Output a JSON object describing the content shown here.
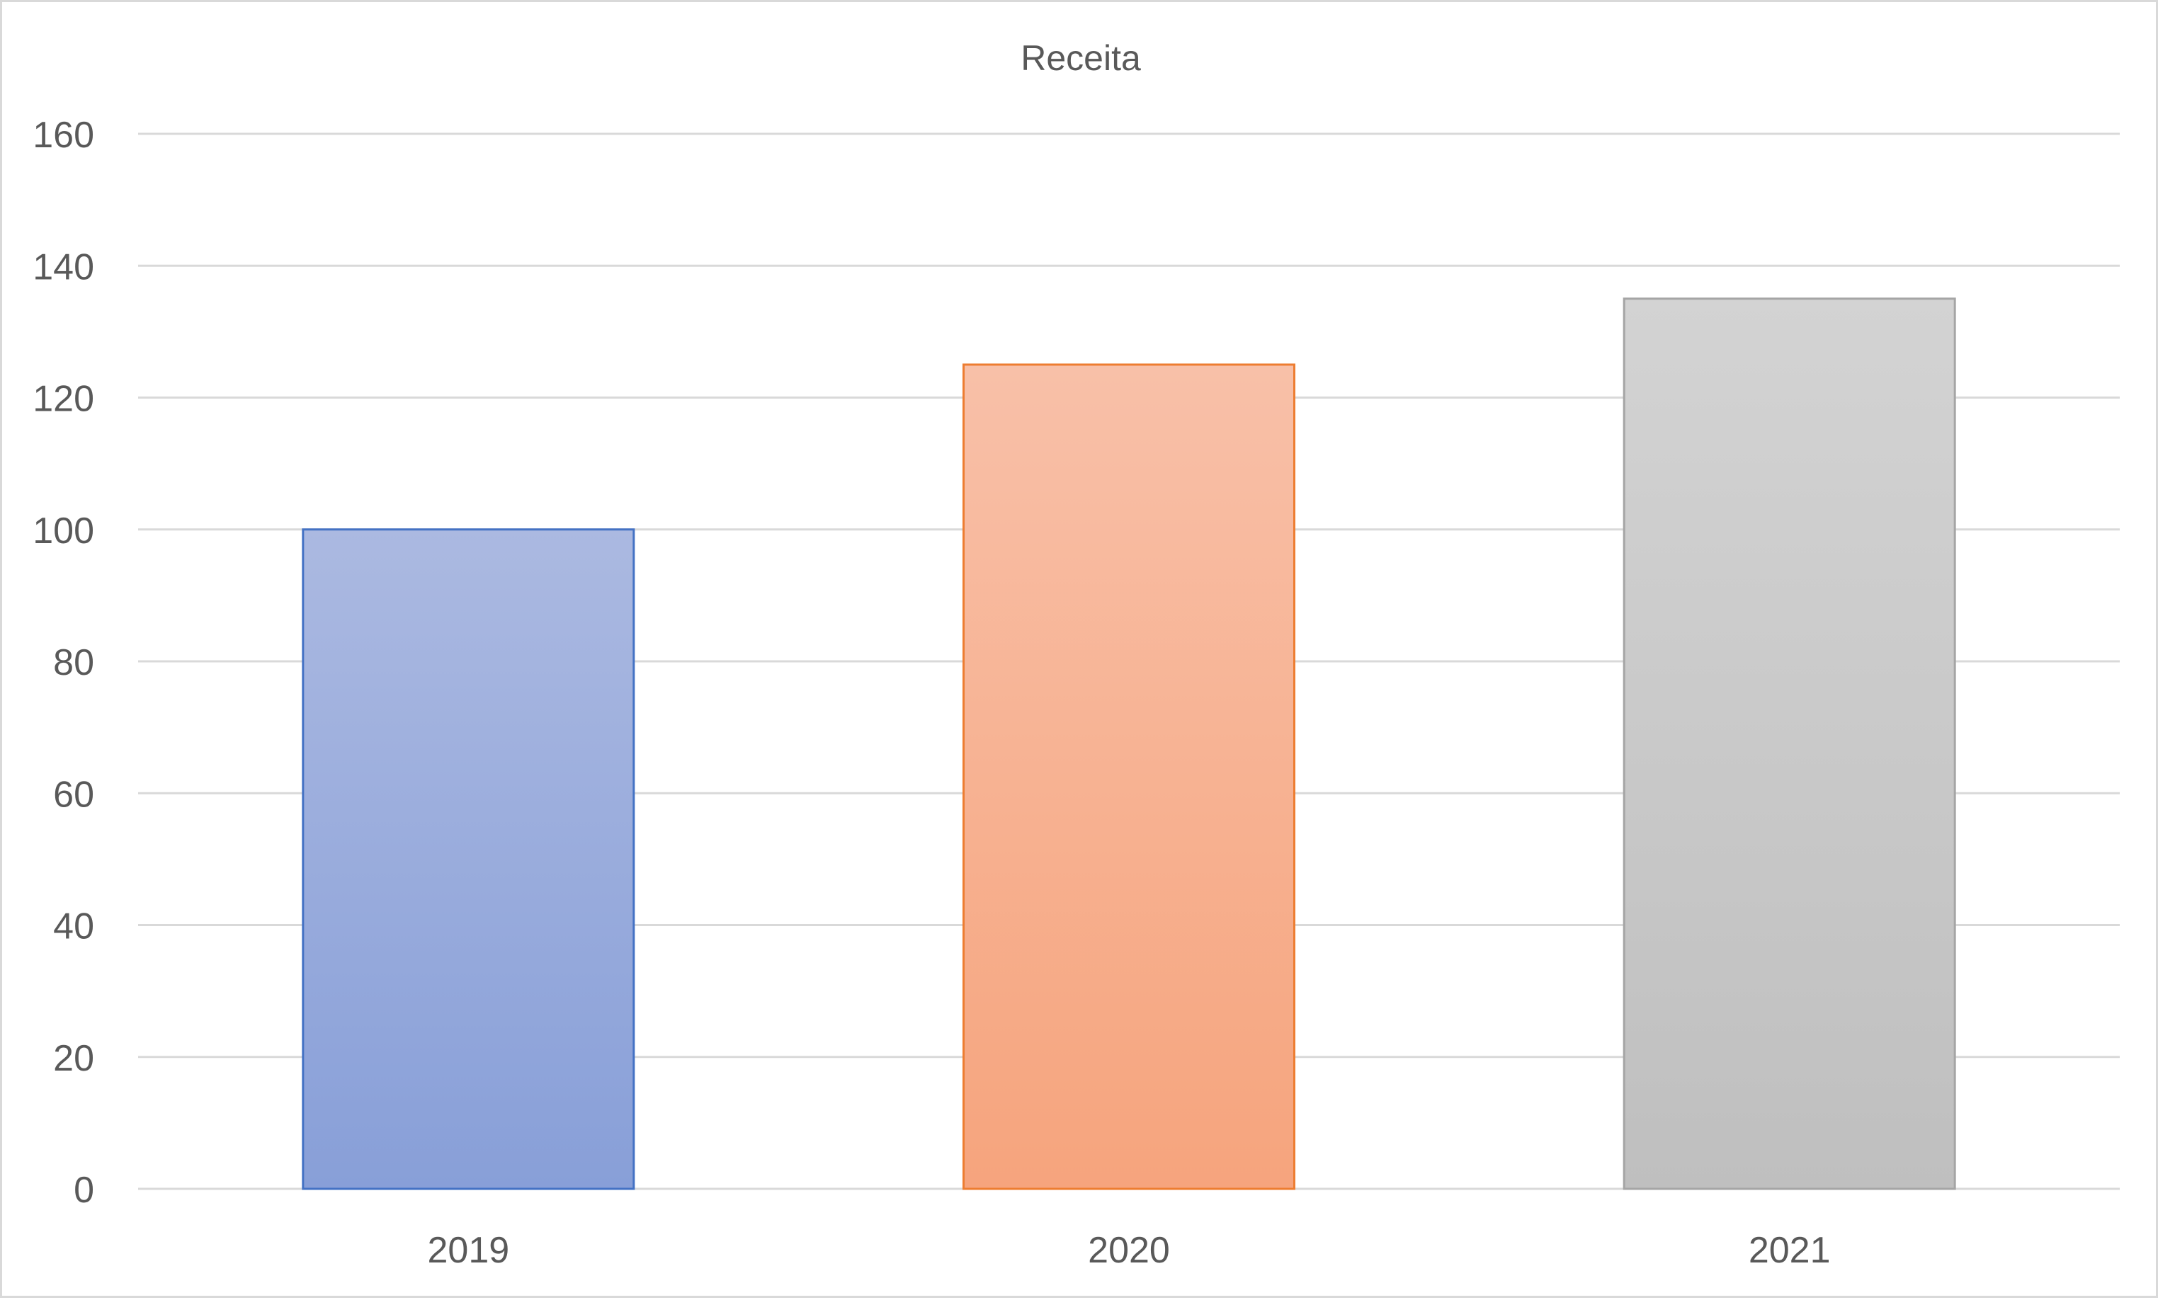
{
  "chart_data": {
    "type": "bar",
    "title": "Receita",
    "categories": [
      "2019",
      "2020",
      "2021"
    ],
    "series": [
      {
        "values": [
          100,
          125,
          135
        ],
        "colors": [
          "#4472c4",
          "#ed7d31",
          "#a5a5a5"
        ]
      }
    ],
    "ylim": [
      0,
      160
    ],
    "yticks": [
      0,
      20,
      40,
      60,
      80,
      100,
      120,
      140,
      160
    ],
    "grid": true,
    "legend": "none",
    "colors": {
      "text": "#595959",
      "grid": "#d9d9d9",
      "bar_2019_top": "#abb9e1",
      "bar_2019_bottom": "#889fd8",
      "bar_2020_top": "#f8c0a8",
      "bar_2020_bottom": "#f6a47d",
      "bar_2021_top": "#d3d3d3",
      "bar_2021_bottom": "#bfbfbf"
    }
  }
}
